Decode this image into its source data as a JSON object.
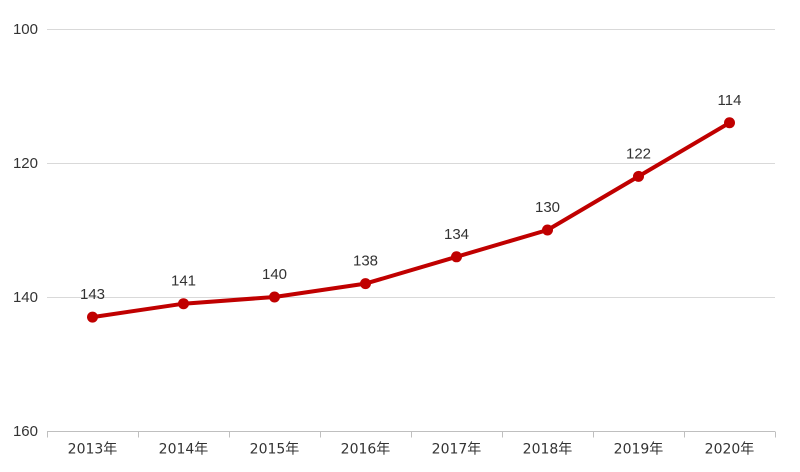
{
  "chart_data": {
    "type": "line",
    "title": "",
    "xlabel": "",
    "ylabel": "",
    "categories": [
      "2013年",
      "2014年",
      "2015年",
      "2016年",
      "2017年",
      "2018年",
      "2019年",
      "2020年"
    ],
    "series": [
      {
        "values": [
          143,
          141,
          140,
          138,
          134,
          130,
          122,
          114
        ],
        "labels": [
          "143",
          "141",
          "140",
          "138",
          "134",
          "130",
          "122",
          "114"
        ],
        "color": "#c00000"
      }
    ],
    "ylim": [
      100,
      160
    ],
    "y_axis_reversed": true,
    "y_ticks": [
      100,
      120,
      140,
      160
    ],
    "y_tick_labels": [
      "100",
      "120",
      "140",
      "160"
    ],
    "grid": "horizontal",
    "gridline_color": "#d9d9d9",
    "axis_color": "#bfbfbf",
    "legend": "none"
  }
}
